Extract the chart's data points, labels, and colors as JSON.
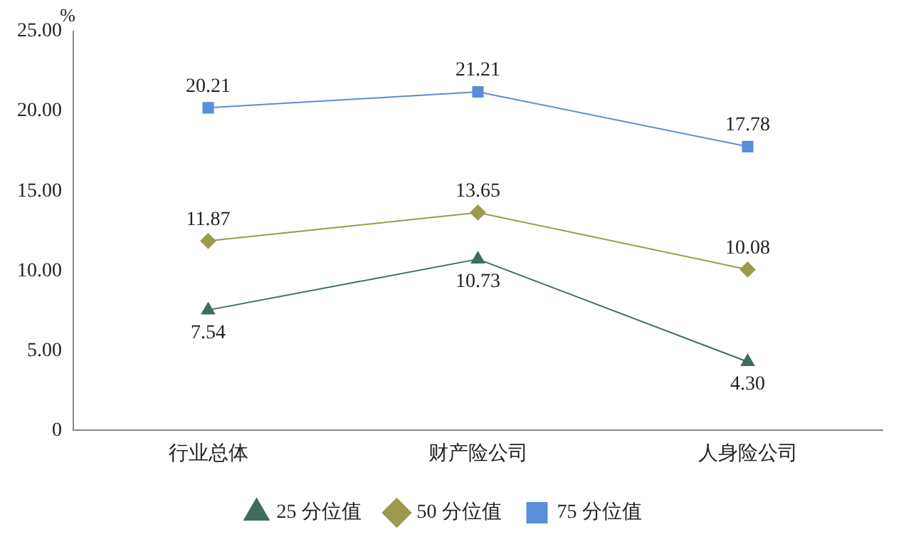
{
  "chart_data": {
    "type": "line",
    "ylabel": "%",
    "categories": [
      "行业总体",
      "财产险公司",
      "人身险公司"
    ],
    "series": [
      {
        "name": "25 分位值",
        "color": "#3f6e5c",
        "marker": "triangle",
        "values": [
          7.54,
          10.73,
          4.3
        ],
        "value_labels": [
          "7.54",
          "10.73",
          "4.30"
        ]
      },
      {
        "name": "50 分位值",
        "color": "#9c9a4c",
        "marker": "diamond",
        "values": [
          11.87,
          13.65,
          10.08
        ],
        "value_labels": [
          "11.87",
          "13.65",
          "10.08"
        ]
      },
      {
        "name": "75 分位值",
        "color": "#5b8ed8",
        "marker": "square",
        "values": [
          20.21,
          21.21,
          17.78
        ],
        "value_labels": [
          "20.21",
          "21.21",
          "17.78"
        ]
      }
    ],
    "ylim": [
      0,
      25
    ],
    "yticks": [
      0,
      {
        "value": 5,
        "label": "5.00"
      },
      {
        "value": 10,
        "label": "10.00"
      },
      {
        "value": 15,
        "label": "15.00"
      },
      {
        "value": 20,
        "label": "20.00"
      },
      {
        "value": 25,
        "label": "25.00"
      }
    ],
    "grid": false,
    "legend": "bottom",
    "line_style": "solid"
  }
}
